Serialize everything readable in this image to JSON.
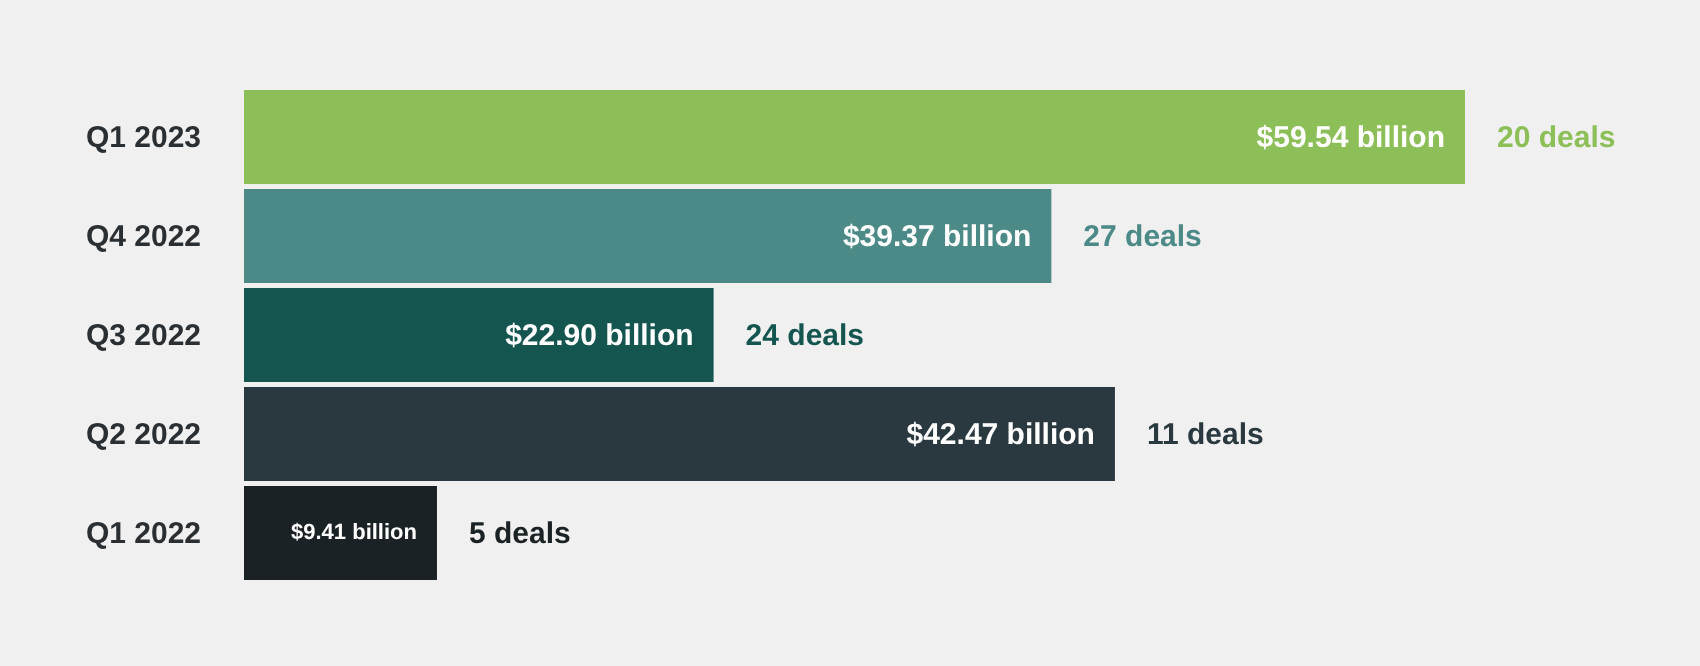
{
  "chart_data": {
    "type": "bar",
    "orientation": "horizontal",
    "categories": [
      "Q1 2023",
      "Q4 2022",
      "Q3 2022",
      "Q2 2022",
      "Q1 2022"
    ],
    "values": [
      59.54,
      39.37,
      22.9,
      42.47,
      9.41
    ],
    "colors": [
      "#8dbf58",
      "#4c8a87",
      "#14554f",
      "#2a393f",
      "#1b2225"
    ],
    "value_labels": [
      "$59.54 billion",
      "$39.37 billion",
      "$22.90 billion",
      "$42.47 billion",
      "$9.41 billion"
    ],
    "xlim": [
      0,
      71
    ],
    "annotations": [
      {
        "text": "20 deals",
        "x": 59.54,
        "y": "Q1 2023"
      },
      {
        "text": "27 deals",
        "x": 39.37,
        "y": "Q4 2022"
      },
      {
        "text": "24 deals",
        "x": 22.9,
        "y": "Q3 2022"
      },
      {
        "text": "11 deals",
        "x": 42.47,
        "y": "Q2 2022"
      },
      {
        "text": "5 deals",
        "x": 9.41,
        "y": "Q1 2022"
      }
    ]
  }
}
